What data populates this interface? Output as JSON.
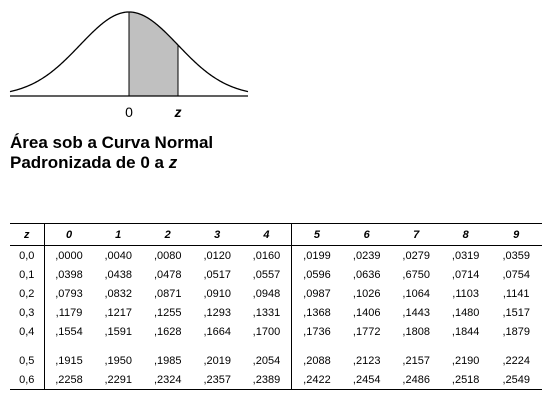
{
  "figure": {
    "axis_labels": [
      "0",
      "z"
    ],
    "shade_from_z": 0,
    "shade_to_z": 1.0,
    "fill_color": "#c0c0c0"
  },
  "title": {
    "line1": "Área sob a Curva Normal",
    "line2_prefix": "Padronizada de 0 a ",
    "line2_var": "z"
  },
  "table": {
    "corner_header": "z",
    "columns": [
      "0",
      "1",
      "2",
      "3",
      "4",
      "5",
      "6",
      "7",
      "8",
      "9"
    ],
    "rows": [
      {
        "z": "0,0",
        "values": [
          ",0000",
          ",0040",
          ",0080",
          ",0120",
          ",0160",
          ",0199",
          ",0239",
          ",0279",
          ",0319",
          ",0359"
        ]
      },
      {
        "z": "0,1",
        "values": [
          ",0398",
          ",0438",
          ",0478",
          ",0517",
          ",0557",
          ",0596",
          ",0636",
          ",6750",
          ",0714",
          ",0754"
        ]
      },
      {
        "z": "0,2",
        "values": [
          ",0793",
          ",0832",
          ",0871",
          ",0910",
          ",0948",
          ",0987",
          ",1026",
          ",1064",
          ",1103",
          ",1141"
        ]
      },
      {
        "z": "0,3",
        "values": [
          ",1179",
          ",1217",
          ",1255",
          ",1293",
          ",1331",
          ",1368",
          ",1406",
          ",1443",
          ",1480",
          ",1517"
        ]
      },
      {
        "z": "0,4",
        "values": [
          ",1554",
          ",1591",
          ",1628",
          ",1664",
          ",1700",
          ",1736",
          ",1772",
          ",1808",
          ",1844",
          ",1879"
        ]
      },
      {
        "z": "0,5",
        "values": [
          ",1915",
          ",1950",
          ",1985",
          ",2019",
          ",2054",
          ",2088",
          ",2123",
          ",2157",
          ",2190",
          ",2224"
        ]
      },
      {
        "z": "0,6",
        "values": [
          ",2258",
          ",2291",
          ",2324",
          ",2357",
          ",2389",
          ",2422",
          ",2454",
          ",2486",
          ",2518",
          ",2549"
        ]
      }
    ]
  }
}
